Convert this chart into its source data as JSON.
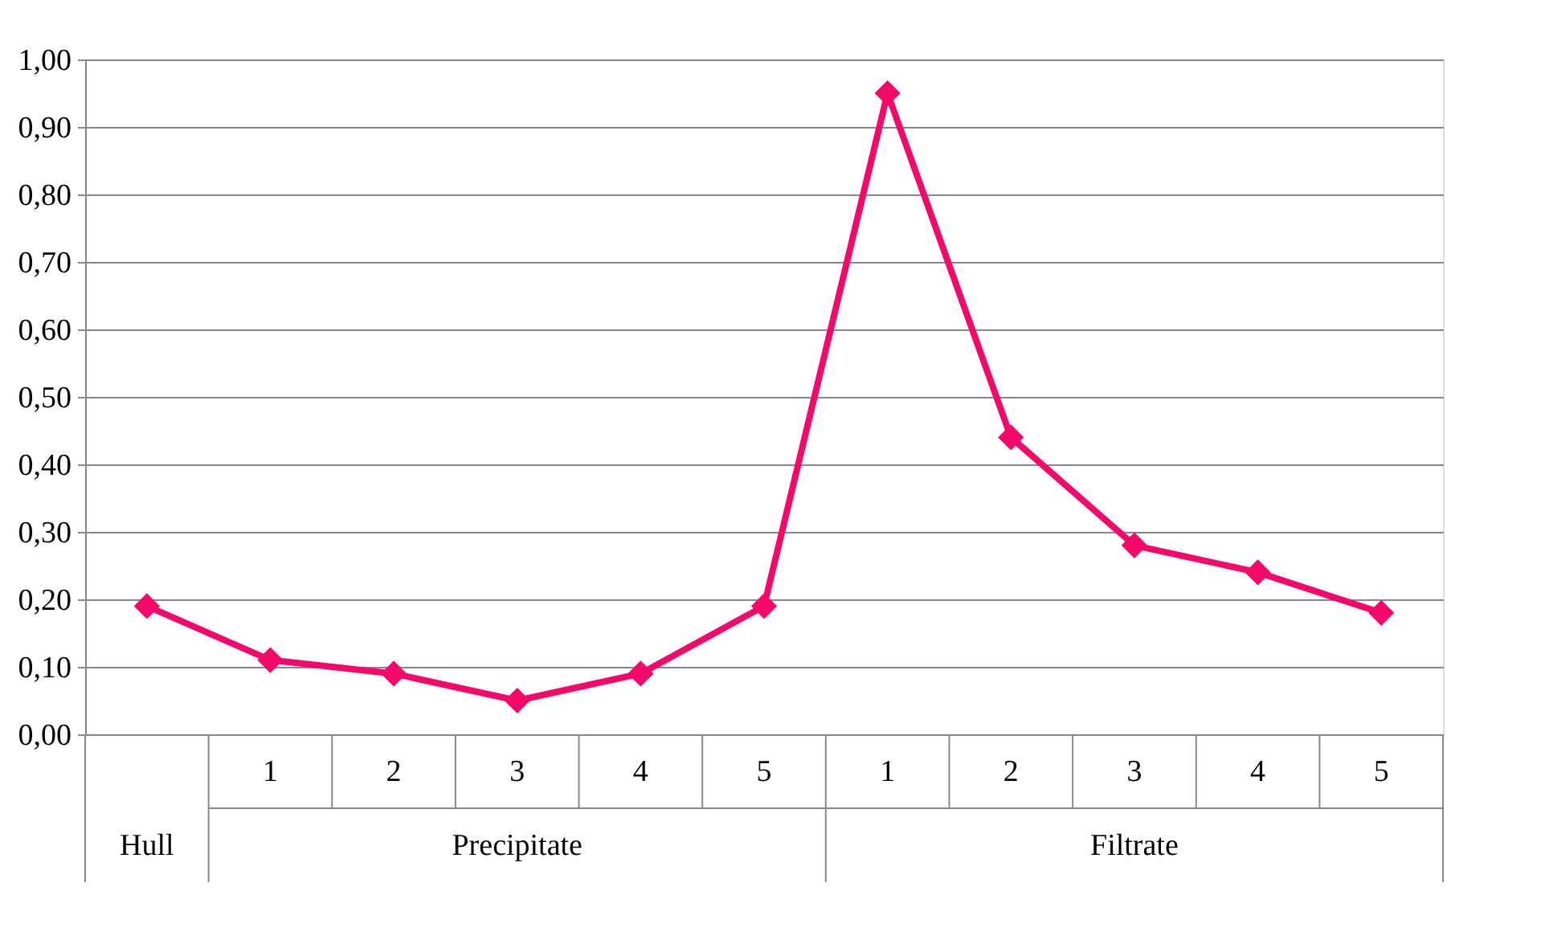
{
  "chart_data": {
    "type": "line",
    "categories": [
      null,
      "1",
      "2",
      "3",
      "4",
      "5",
      "1",
      "2",
      "3",
      "4",
      "5"
    ],
    "series": [
      {
        "color": "#f5086a",
        "values": [
          0.19,
          0.11,
          0.09,
          0.05,
          0.09,
          0.19,
          0.95,
          0.44,
          0.28,
          0.24,
          0.18
        ]
      }
    ],
    "annotations": [
      "Hull",
      "Precipitate",
      "Filtrate"
    ],
    "ylim": [
      0,
      1
    ],
    "yticks": [
      {
        "value": 0,
        "label": "0,00"
      },
      {
        "value": 0.1,
        "label": "0,10"
      },
      {
        "value": 0.2,
        "label": "0,20"
      },
      {
        "value": 0.3,
        "label": "0,30"
      },
      {
        "value": 0.4,
        "label": "0,40"
      },
      {
        "value": 0.5,
        "label": "0,50"
      },
      {
        "value": 0.6,
        "label": "0,60"
      },
      {
        "value": 0.7,
        "label": "0,70"
      },
      {
        "value": 0.8,
        "label": "0,80"
      },
      {
        "value": 0.9,
        "label": "0,90"
      },
      {
        "value": 1,
        "label": "1,00"
      }
    ],
    "grid": "y",
    "marker": "diamond",
    "line_style": "solid"
  }
}
